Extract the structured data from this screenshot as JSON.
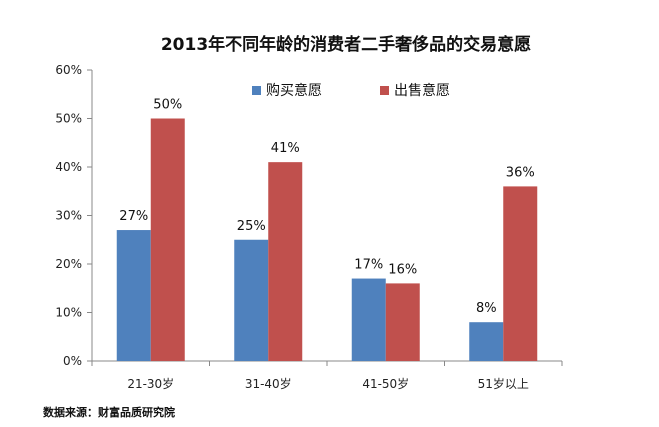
{
  "chart_data": {
    "type": "bar",
    "title": "2013年不同年龄的消费者二手奢侈品的交易意愿",
    "categories": [
      "21-30岁",
      "31-40岁",
      "41-50岁",
      "51岁以上"
    ],
    "series": [
      {
        "name": "购买意愿",
        "color": "#4f81bd",
        "values": [
          27,
          25,
          17,
          8
        ],
        "labels": [
          "27%",
          "25%",
          "17%",
          "8%"
        ]
      },
      {
        "name": "出售意愿",
        "color": "#c0504d",
        "values": [
          50,
          41,
          16,
          36
        ],
        "labels": [
          "50%",
          "41%",
          "16%",
          "36%"
        ]
      }
    ],
    "yticks": [
      0,
      10,
      20,
      30,
      40,
      50,
      60
    ],
    "ytick_labels": [
      "0%",
      "10%",
      "20%",
      "30%",
      "40%",
      "50%",
      "60%"
    ],
    "ylim": [
      0,
      60
    ],
    "xlabel": "",
    "ylabel": "",
    "grid": false,
    "legend_position": "top-right"
  },
  "source_note": "数据来源：财富品质研究院"
}
